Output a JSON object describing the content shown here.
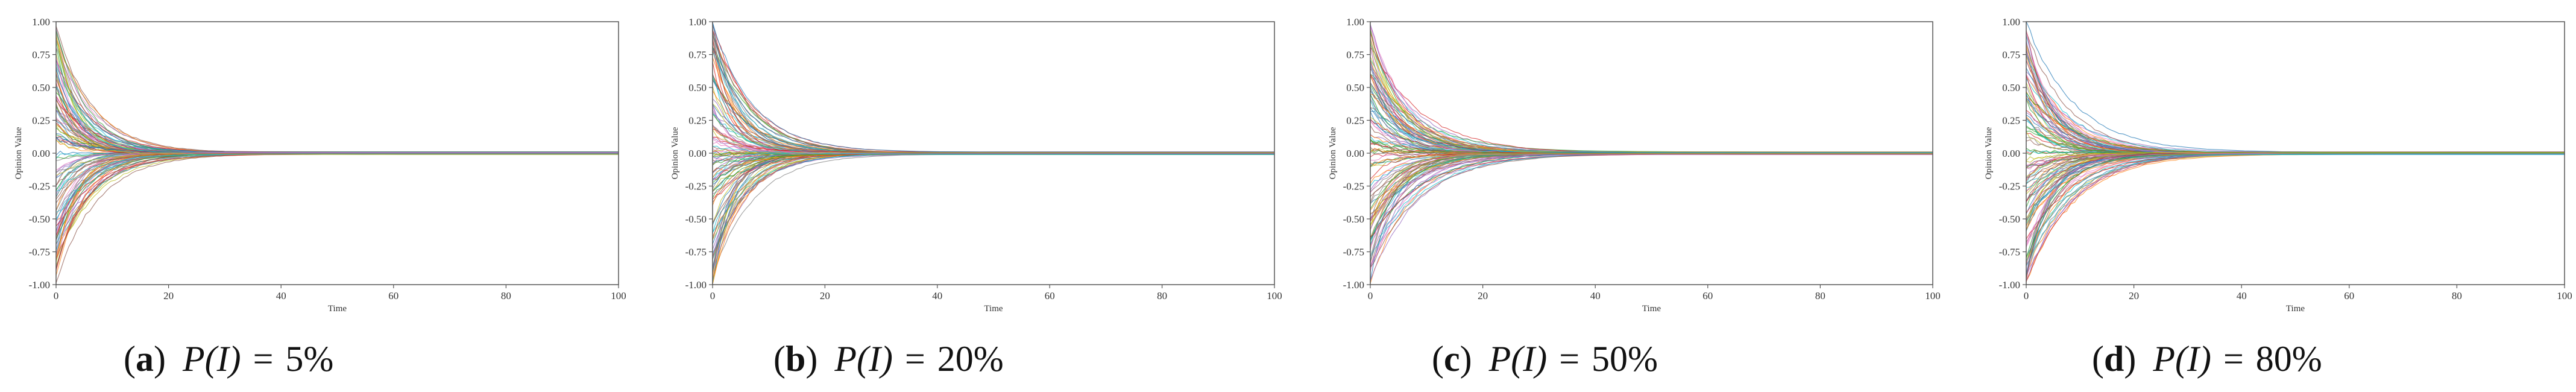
{
  "chart_data": [
    {
      "type": "line",
      "panel": "(a)",
      "caption": {
        "letter": "a",
        "math": "P(I)",
        "equals": "=",
        "value": "5%"
      },
      "xlabel": "Time",
      "ylabel": "Opinion Value",
      "xlim": [
        0,
        100
      ],
      "ylim": [
        -1.0,
        1.0
      ],
      "x_ticks": [
        "0",
        "20",
        "40",
        "60",
        "80",
        "100"
      ],
      "y_ticks": [
        "1.00",
        "0.75",
        "0.50",
        "0.25",
        "0.00",
        "-0.25",
        "-0.50",
        "-0.75",
        "-1.00"
      ],
      "series_count_approx": 120,
      "initial_range": [
        -1.0,
        1.0
      ],
      "decay_time_approx": 20,
      "final_value": 0.0,
      "grid": false
    },
    {
      "type": "line",
      "panel": "(b)",
      "caption": {
        "letter": "b",
        "math": "P(I)",
        "equals": "=",
        "value": "20%"
      },
      "xlabel": "Time",
      "ylabel": "Opinion Value",
      "xlim": [
        0,
        100
      ],
      "ylim": [
        -1.0,
        1.0
      ],
      "x_ticks": [
        "0",
        "20",
        "40",
        "60",
        "80",
        "100"
      ],
      "y_ticks": [
        "1.00",
        "0.75",
        "0.50",
        "0.25",
        "0.00",
        "-0.25",
        "-0.50",
        "-0.75",
        "-1.00"
      ],
      "series_count_approx": 120,
      "initial_range": [
        -1.0,
        1.0
      ],
      "decay_time_approx": 20,
      "final_value": 0.0,
      "grid": false
    },
    {
      "type": "line",
      "panel": "(c)",
      "caption": {
        "letter": "c",
        "math": "P(I)",
        "equals": "=",
        "value": "50%"
      },
      "xlabel": "Time",
      "ylabel": "Opinion Value",
      "xlim": [
        0,
        100
      ],
      "ylim": [
        -1.0,
        1.0
      ],
      "x_ticks": [
        "0",
        "20",
        "40",
        "60",
        "80",
        "100"
      ],
      "y_ticks": [
        "1.00",
        "0.75",
        "0.50",
        "0.25",
        "0.00",
        "-0.25",
        "-0.50",
        "-0.75",
        "-1.00"
      ],
      "series_count_approx": 120,
      "initial_range": [
        -1.0,
        1.0
      ],
      "decay_time_approx": 25,
      "final_value": 0.0,
      "grid": false
    },
    {
      "type": "line",
      "panel": "(d)",
      "caption": {
        "letter": "d",
        "math": "P(I)",
        "equals": "=",
        "value": "80%"
      },
      "xlabel": "Time",
      "ylabel": "Opinion Value",
      "xlim": [
        0,
        100
      ],
      "ylim": [
        -1.0,
        1.0
      ],
      "x_ticks": [
        "0",
        "20",
        "40",
        "60",
        "80",
        "100"
      ],
      "y_ticks": [
        "1.00",
        "0.75",
        "0.50",
        "0.25",
        "0.00",
        "-0.25",
        "-0.50",
        "-0.75",
        "-1.00"
      ],
      "series_count_approx": 120,
      "initial_range": [
        -1.0,
        1.0
      ],
      "decay_time_approx": 25,
      "final_value": 0.0,
      "grid": false
    }
  ],
  "palette": [
    "#1f77b4",
    "#ff7f0e",
    "#2ca02c",
    "#d62728",
    "#9467bd",
    "#8c564b",
    "#e377c2",
    "#7f7f7f",
    "#bcbd22",
    "#17becf"
  ]
}
